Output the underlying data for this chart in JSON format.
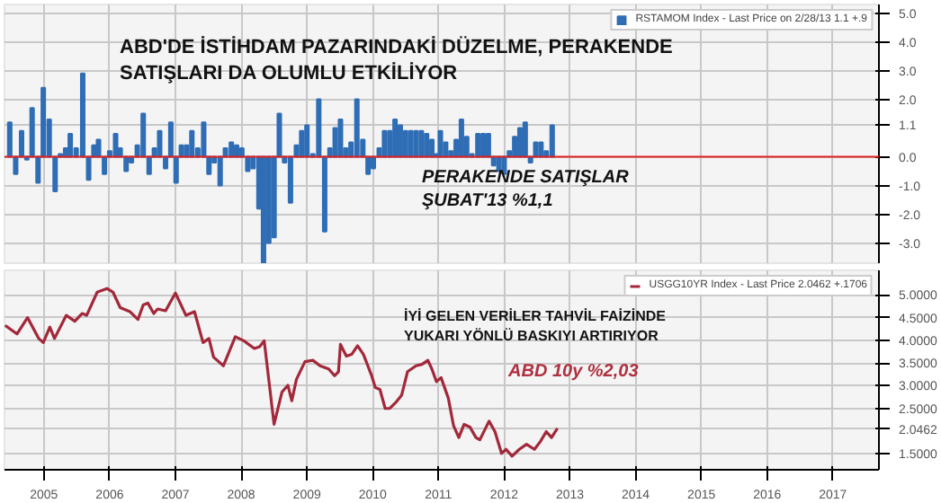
{
  "chart_data": [
    {
      "type": "bar",
      "annotations": [
        "ABD'DE İSTİHDAM PAZARINDAKİ DÜZELME, PERAKENDE SATIŞLARI DA OLUMLU ETKİLİYOR",
        "PERAKENDE SATIŞLAR ŞUBAT'13 %1,1"
      ],
      "x": [
        2004.98,
        2005.07,
        2005.16,
        2005.24,
        2005.32,
        2005.41,
        2005.49,
        2005.58,
        2005.67,
        2005.75,
        2005.83,
        2005.9,
        2005.99,
        2006.09,
        2006.18,
        2006.26,
        2006.33,
        2006.42,
        2006.5,
        2006.59,
        2006.66,
        2006.75,
        2006.83,
        2006.92,
        2007.01,
        2007.1,
        2007.18,
        2007.26,
        2007.35,
        2007.43,
        2007.51,
        2007.59,
        2007.67,
        2007.75,
        2007.84,
        2007.93,
        2008.01,
        2008.09,
        2008.18,
        2008.26,
        2008.35,
        2008.43,
        2008.51,
        2008.6,
        2008.68,
        2008.77,
        2008.84,
        2008.92,
        2009.0,
        2009.08,
        2009.16,
        2009.25,
        2009.34,
        2009.42,
        2009.5,
        2009.59,
        2009.68,
        2009.77,
        2009.85,
        2009.93,
        2010.01,
        2010.09,
        2010.17,
        2010.26,
        2010.35,
        2010.43,
        2010.51,
        2010.6,
        2010.68,
        2010.76,
        2010.84,
        2010.92,
        2011.0,
        2011.08,
        2011.16,
        2011.24,
        2011.32,
        2011.4,
        2011.48,
        2011.53,
        2011.61,
        2011.69,
        2011.77,
        2011.85,
        2011.93,
        2012.01,
        2012.1,
        2012.18,
        2012.26,
        2012.34,
        2012.42,
        2012.5,
        2012.58,
        2012.66,
        2012.74,
        2012.82,
        2012.9,
        2012.98,
        2013.06,
        2013.14,
        2013.23
      ],
      "series": [
        {
          "name": "RSTAMOM Index - Last Price on 2/28/13 1.1 +.9",
          "color": "#2f6db5",
          "values": [
            1.2,
            -0.6,
            0.9,
            -0.1,
            1.7,
            -0.9,
            2.4,
            1.3,
            -1.2,
            0.1,
            0.3,
            0.8,
            0.3,
            2.9,
            -0.8,
            0.4,
            0.6,
            -0.6,
            0.2,
            0.8,
            0.3,
            -0.5,
            -0.2,
            0.4,
            1.5,
            -0.6,
            0.3,
            0.9,
            -0.4,
            1.2,
            -0.9,
            0.4,
            0.4,
            0.9,
            0.3,
            1.2,
            -0.6,
            -0.2,
            -1.0,
            0.3,
            0.5,
            0.4,
            0.3,
            -0.5,
            -0.4,
            -1.8,
            -3.7,
            -3.0,
            -2.8,
            1.5,
            -0.2,
            -1.6,
            0.4,
            0.9,
            1.1,
            0.1,
            2.0,
            -2.6,
            0.3,
            1.0,
            1.3,
            0.3,
            0.5,
            2.0,
            0.6,
            -0.6,
            -0.4,
            0.3,
            0.9,
            0.9,
            1.3,
            1.1,
            0.9,
            0.9,
            0.9,
            0.9,
            0.8,
            0.6,
            0.1,
            0.9,
            0.5,
            0.2,
            0.6,
            1.3,
            0.7,
            0.1,
            0.8,
            0.8,
            0.8,
            -0.3,
            -0.5,
            -0.6,
            0.2,
            0.7,
            1.0,
            1.2,
            -0.2,
            0.5,
            0.5,
            0.2,
            1.1
          ]
        }
      ],
      "xlim": [
        2004.9,
        2018.2
      ],
      "ylim": [
        -3.7,
        5.3
      ],
      "yticks": [
        {
          "value": 5,
          "label": "5.0"
        },
        {
          "value": 4,
          "label": "4.0"
        },
        {
          "value": 3,
          "label": "3.0"
        },
        {
          "value": 2,
          "label": "2.0"
        },
        {
          "value": 1.1,
          "label": "1.1"
        },
        {
          "value": 0,
          "label": "0.0"
        },
        {
          "value": -1,
          "label": "-1.0"
        },
        {
          "value": -2,
          "label": "-2.0"
        },
        {
          "value": -3,
          "label": "-3.0"
        }
      ],
      "xticks": [
        2005.5,
        2006.5,
        2007.5,
        2008.5,
        2009.5,
        2010.5,
        2011.5,
        2012.5,
        2013.5,
        2014.5,
        2015.5,
        2016.5,
        2017.5
      ],
      "ref_lines": [
        {
          "axis": "y",
          "value": 0,
          "color": "#e02020"
        }
      ],
      "tick_labels": "y",
      "grid": true,
      "legend": "top right"
    },
    {
      "type": "line",
      "annotations": [
        "İYİ GELEN VERİLER TAHVİL FAİZİNDE YUKARI YÖNLÜ BASKIYI ARTIRIYOR",
        "ABD 10y %2,03"
      ],
      "series": [
        {
          "name": "USGG10YR Index - Last Price 2.0462 +.1706",
          "color": "#a3283a",
          "x": [
            2004.91,
            2005.09,
            2005.25,
            2005.42,
            2005.49,
            2005.59,
            2005.66,
            2005.84,
            2005.97,
            2006.08,
            2006.15,
            2006.31,
            2006.46,
            2006.55,
            2006.66,
            2006.81,
            2006.93,
            2007.01,
            2007.08,
            2007.17,
            2007.23,
            2007.35,
            2007.5,
            2007.66,
            2007.79,
            2007.92,
            2008.01,
            2008.08,
            2008.23,
            2008.41,
            2008.54,
            2008.7,
            2008.78,
            2008.85,
            2009.0,
            2009.12,
            2009.21,
            2009.27,
            2009.34,
            2009.47,
            2009.59,
            2009.7,
            2009.83,
            2009.92,
            2009.98,
            2010.01,
            2010.1,
            2010.18,
            2010.27,
            2010.36,
            2010.48,
            2010.54,
            2010.61,
            2010.69,
            2010.76,
            2010.85,
            2010.94,
            2011.03,
            2011.16,
            2011.25,
            2011.34,
            2011.4,
            2011.47,
            2011.54,
            2011.65,
            2011.73,
            2011.81,
            2011.89,
            2011.98,
            2012.07,
            2012.13,
            2012.27,
            2012.36,
            2012.46,
            2012.53,
            2012.62,
            2012.73,
            2012.84,
            2012.96,
            2013.05,
            2013.14,
            2013.22,
            2013.31
          ],
          "values": [
            4.33,
            4.14,
            4.5,
            4.04,
            3.95,
            4.29,
            4.04,
            4.55,
            4.42,
            4.59,
            4.55,
            5.06,
            5.14,
            5.06,
            4.72,
            4.63,
            4.46,
            4.78,
            4.82,
            4.59,
            4.69,
            4.65,
            5.04,
            4.55,
            4.63,
            3.95,
            4.04,
            3.63,
            3.44,
            4.08,
            3.99,
            3.82,
            3.86,
            3.99,
            2.15,
            2.86,
            3.01,
            2.67,
            3.14,
            3.53,
            3.56,
            3.44,
            3.37,
            3.22,
            3.31,
            3.91,
            3.65,
            3.69,
            3.88,
            3.69,
            3.24,
            2.96,
            2.92,
            2.5,
            2.5,
            2.63,
            2.79,
            3.31,
            3.44,
            3.47,
            3.56,
            3.37,
            3.09,
            3.18,
            2.73,
            2.12,
            1.86,
            2.15,
            2.09,
            1.86,
            1.81,
            2.22,
            1.99,
            1.51,
            1.6,
            1.45,
            1.6,
            1.71,
            1.6,
            1.77,
            1.99,
            1.86,
            2.06
          ]
        }
      ],
      "xlim": [
        2004.9,
        2018.2
      ],
      "ylim": [
        1.15,
        5.54
      ],
      "yticks": [
        {
          "value": 5,
          "label": "5.0000"
        },
        {
          "value": 4.5,
          "label": "4.5000"
        },
        {
          "value": 4,
          "label": "4.0000"
        },
        {
          "value": 3.5,
          "label": "3.5000"
        },
        {
          "value": 3,
          "label": "3.0000"
        },
        {
          "value": 2.5,
          "label": "2.5000"
        },
        {
          "value": 2.0462,
          "label": "2.0462"
        },
        {
          "value": 1.5,
          "label": "1.5000"
        }
      ],
      "xticks": [
        {
          "value": 2005.5,
          "label": "2005"
        },
        {
          "value": 2006.5,
          "label": "2006"
        },
        {
          "value": 2007.5,
          "label": "2007"
        },
        {
          "value": 2008.5,
          "label": "2008"
        },
        {
          "value": 2009.5,
          "label": "2009"
        },
        {
          "value": 2010.5,
          "label": "2010"
        },
        {
          "value": 2011.5,
          "label": "2011"
        },
        {
          "value": 2012.5,
          "label": "2012"
        },
        {
          "value": 2013.5,
          "label": "2013"
        },
        {
          "value": 2014.5,
          "label": "2014"
        },
        {
          "value": 2015.5,
          "label": "2015"
        },
        {
          "value": 2016.5,
          "label": "2016"
        },
        {
          "value": 2017.5,
          "label": "2017"
        }
      ],
      "grid": true,
      "legend": "top right",
      "marker": "none",
      "line_style": "solid"
    }
  ]
}
